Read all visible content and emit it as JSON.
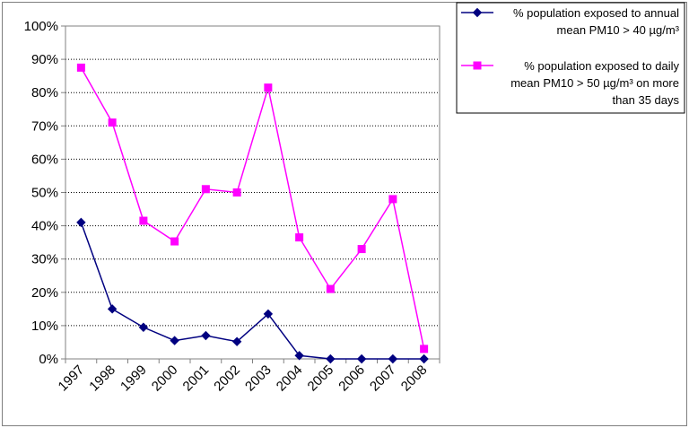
{
  "chart_data": {
    "type": "line",
    "title": "",
    "xlabel": "",
    "ylabel": "",
    "categories": [
      "1997",
      "1998",
      "1999",
      "2000",
      "2001",
      "2002",
      "2003",
      "2004",
      "2005",
      "2006",
      "2007",
      "2008"
    ],
    "ylim": [
      0,
      100
    ],
    "yticks": [
      "0%",
      "10%",
      "20%",
      "30%",
      "40%",
      "50%",
      "60%",
      "70%",
      "80%",
      "90%",
      "100%"
    ],
    "grid": "horizontal dotted",
    "legend_position": "top-right (outside plot)",
    "series": [
      {
        "name_lines": [
          "% population exposed to annual",
          "mean PM10 > 40 µg/m³"
        ],
        "marker": "diamond",
        "color": "#000080",
        "values": [
          41,
          15,
          9.5,
          5.5,
          7,
          5.2,
          13.5,
          1,
          0,
          0,
          0,
          0
        ]
      },
      {
        "name_lines": [
          "% population exposed to daily",
          "mean PM10 > 50 µg/m³ on more",
          "than 35 days"
        ],
        "marker": "square",
        "color": "#ff00ff",
        "values": [
          87.5,
          71,
          41.5,
          35.3,
          51,
          50,
          81.5,
          36.5,
          21,
          33,
          48,
          3
        ]
      }
    ]
  }
}
